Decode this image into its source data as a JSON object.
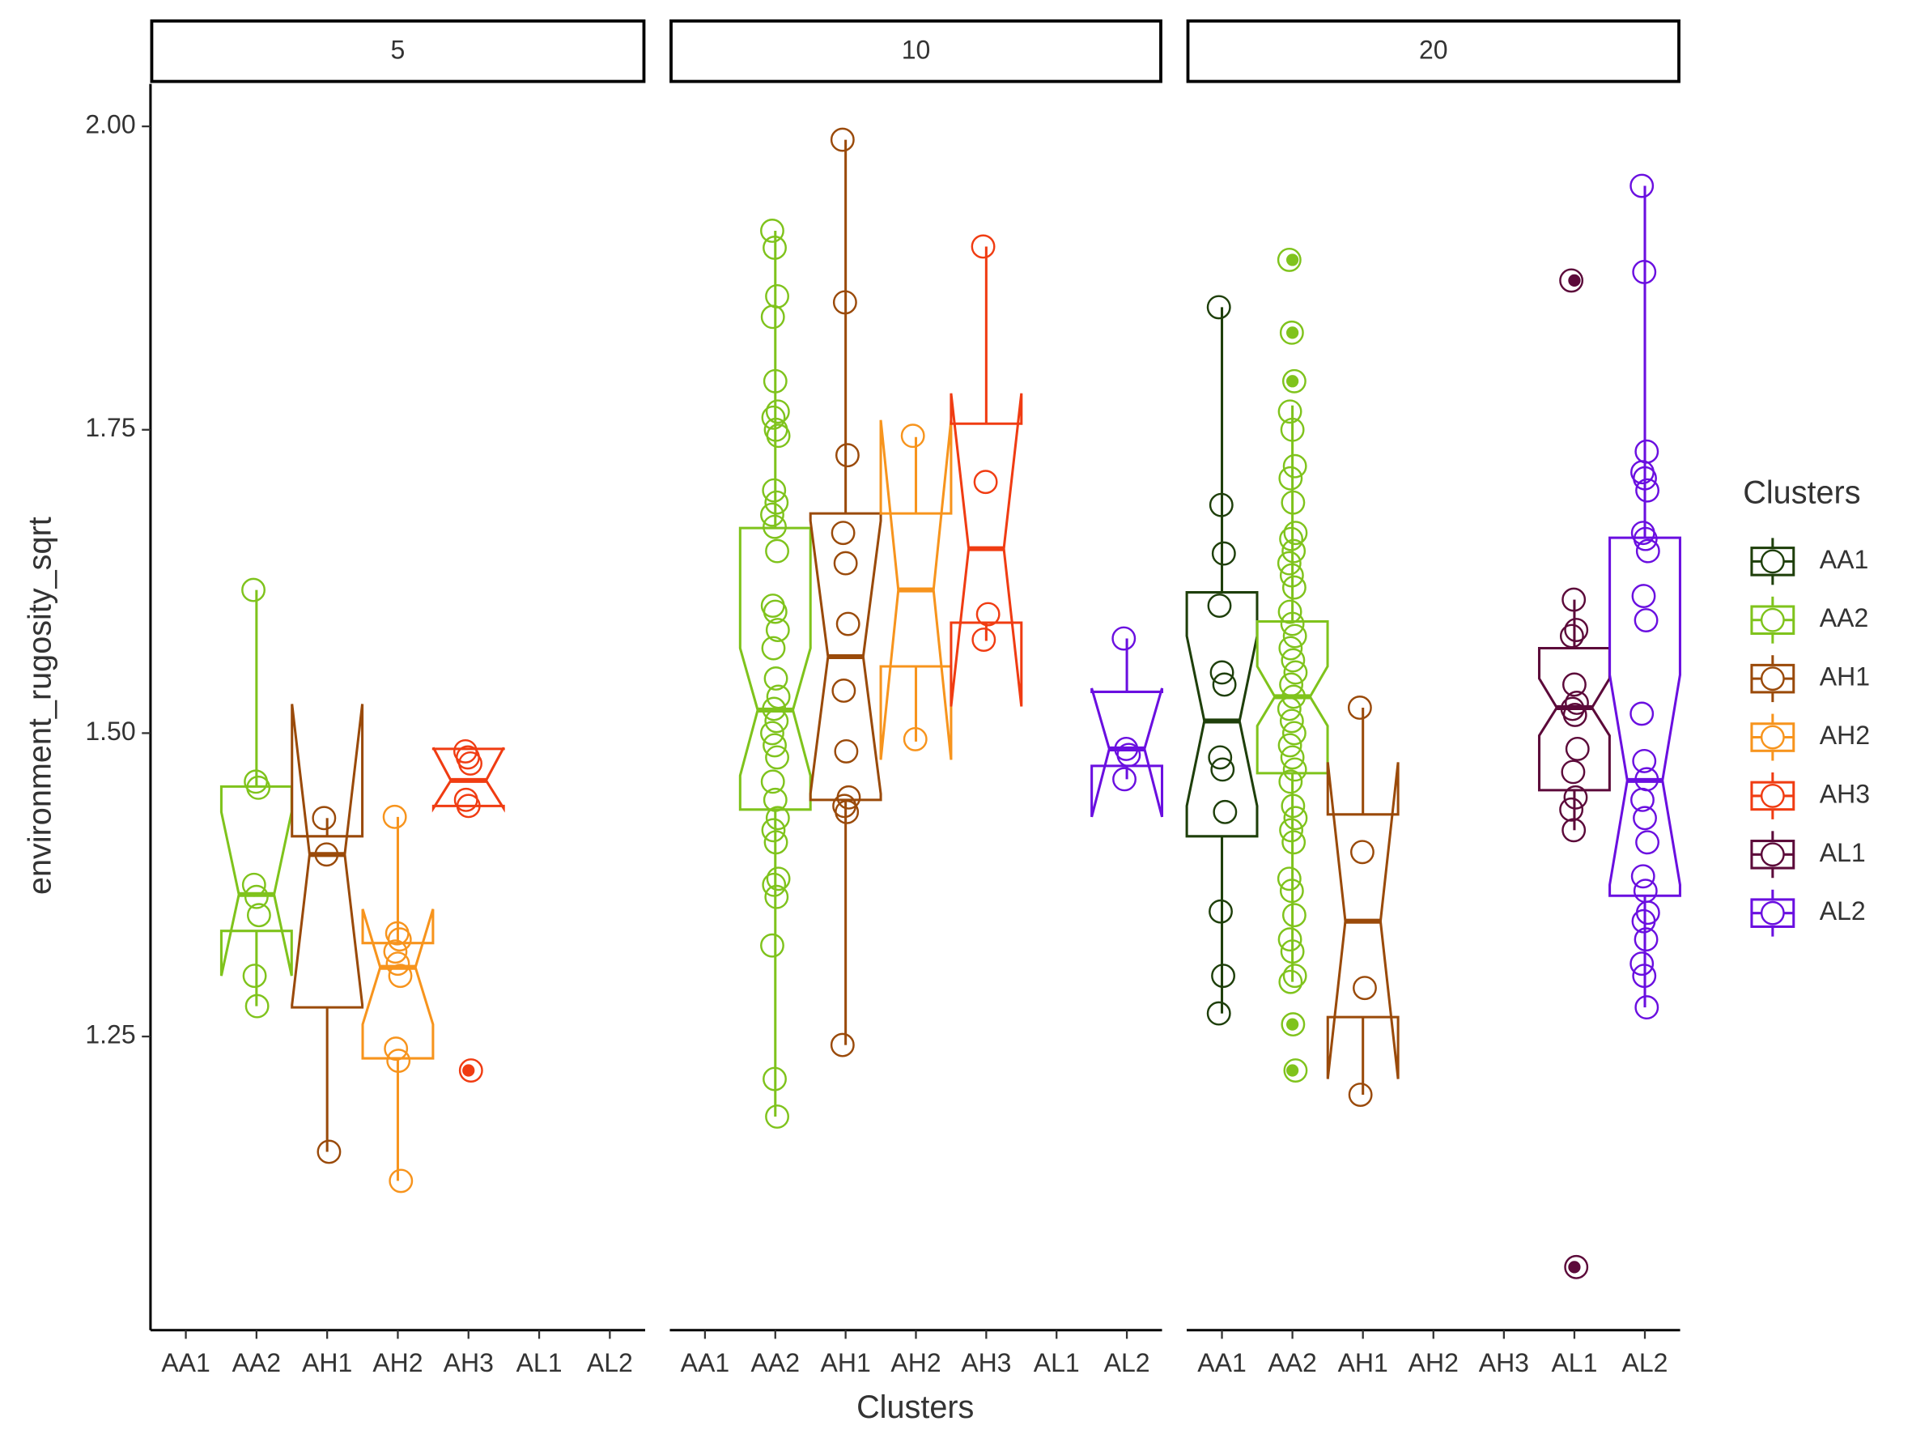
{
  "chart_data": {
    "type": "boxplot",
    "x_label": "Clusters",
    "y_label": "environment_rugosity_sqrt",
    "legend_title": "Clusters",
    "legend_position": "right",
    "categories": [
      "AA1",
      "AA2",
      "AH1",
      "AH2",
      "AH3",
      "AL1",
      "AL2"
    ],
    "series": [
      {
        "name": "AA1",
        "color": "#1e3f0a"
      },
      {
        "name": "AA2",
        "color": "#7fc31c"
      },
      {
        "name": "AH1",
        "color": "#9a4a0a"
      },
      {
        "name": "AH2",
        "color": "#f7941d"
      },
      {
        "name": "AH3",
        "color": "#f03c12"
      },
      {
        "name": "AL1",
        "color": "#5c0a3a"
      },
      {
        "name": "AL2",
        "color": "#6a0fe0"
      }
    ],
    "ylim": [
      1.008,
      2.035
    ],
    "yticks": [
      {
        "value": 1.25,
        "label": "1.25"
      },
      {
        "value": 1.5,
        "label": "1.50"
      },
      {
        "value": 1.75,
        "label": "1.75"
      },
      {
        "value": 2,
        "label": "2.00"
      }
    ],
    "facets": [
      {
        "title": "5",
        "values": [
          null,
          {
            "q1": 1.337,
            "median": 1.367,
            "q3": 1.456,
            "lower": 1.275,
            "upper": 1.618,
            "notch_low": 1.3,
            "notch_high": 1.435,
            "points": [
              1.618,
              1.46,
              1.455,
              1.375,
              1.365,
              1.35,
              1.3,
              1.275
            ],
            "outliers": []
          },
          {
            "q1": 1.274,
            "median": 1.4,
            "q3": 1.415,
            "lower": 1.155,
            "upper": 1.43,
            "notch_low": 1.276,
            "notch_high": 1.524,
            "points": [
              1.43,
              1.4,
              1.155
            ],
            "outliers": []
          },
          {
            "q1": 1.232,
            "median": 1.307,
            "q3": 1.327,
            "lower": 1.131,
            "upper": 1.431,
            "notch_low": 1.26,
            "notch_high": 1.355,
            "points": [
              1.431,
              1.335,
              1.33,
              1.32,
              1.31,
              1.3,
              1.24,
              1.23,
              1.131
            ],
            "outliers": []
          },
          {
            "q1": 1.44,
            "median": 1.461,
            "q3": 1.487,
            "lower": 1.44,
            "upper": 1.487,
            "notch_low": 1.438,
            "notch_high": 1.488,
            "points": [
              1.485,
              1.48,
              1.475,
              1.445,
              1.44,
              1.222
            ],
            "outliers": [
              1.222
            ]
          },
          null,
          null
        ]
      },
      {
        "title": "10",
        "values": [
          null,
          {
            "q1": 1.437,
            "median": 1.519,
            "q3": 1.669,
            "lower": 1.184,
            "upper": 1.914,
            "notch_low": 1.465,
            "notch_high": 1.57,
            "points": [
              1.914,
              1.9,
              1.86,
              1.843,
              1.79,
              1.765,
              1.76,
              1.75,
              1.745,
              1.7,
              1.69,
              1.68,
              1.67,
              1.65,
              1.605,
              1.6,
              1.585,
              1.57,
              1.545,
              1.53,
              1.52,
              1.51,
              1.5,
              1.49,
              1.48,
              1.46,
              1.445,
              1.43,
              1.42,
              1.41,
              1.38,
              1.375,
              1.365,
              1.325,
              1.215,
              1.184
            ],
            "outliers": []
          },
          {
            "q1": 1.445,
            "median": 1.563,
            "q3": 1.681,
            "lower": 1.243,
            "upper": 1.989,
            "notch_low": 1.45,
            "notch_high": 1.675,
            "points": [
              1.989,
              1.855,
              1.729,
              1.665,
              1.64,
              1.59,
              1.535,
              1.485,
              1.447,
              1.44,
              1.435,
              1.243
            ],
            "outliers": []
          },
          {
            "q1": 1.555,
            "median": 1.618,
            "q3": 1.681,
            "lower": 1.493,
            "upper": 1.744,
            "notch_low": 1.478,
            "notch_high": 1.758,
            "points": [
              1.745,
              1.495
            ],
            "outliers": []
          },
          {
            "q1": 1.591,
            "median": 1.652,
            "q3": 1.755,
            "lower": 1.576,
            "upper": 1.901,
            "notch_low": 1.522,
            "notch_high": 1.78,
            "points": [
              1.901,
              1.707,
              1.598,
              1.577
            ],
            "outliers": []
          },
          null,
          {
            "q1": 1.473,
            "median": 1.487,
            "q3": 1.534,
            "lower": 1.462,
            "upper": 1.578,
            "notch_low": 1.431,
            "notch_high": 1.537,
            "points": [
              1.578,
              1.487,
              1.482,
              1.462
            ],
            "outliers": []
          }
        ]
      },
      {
        "title": "20",
        "values": [
          {
            "q1": 1.415,
            "median": 1.51,
            "q3": 1.616,
            "lower": 1.269,
            "upper": 1.851,
            "notch_low": 1.44,
            "notch_high": 1.58,
            "points": [
              1.851,
              1.688,
              1.648,
              1.605,
              1.55,
              1.54,
              1.48,
              1.47,
              1.435,
              1.353,
              1.3,
              1.269
            ],
            "outliers": []
          },
          {
            "q1": 1.467,
            "median": 1.53,
            "q3": 1.592,
            "lower": 1.295,
            "upper": 1.77,
            "notch_low": 1.506,
            "notch_high": 1.555,
            "points": [
              1.89,
              1.83,
              1.79,
              1.765,
              1.75,
              1.72,
              1.71,
              1.69,
              1.665,
              1.66,
              1.65,
              1.64,
              1.63,
              1.62,
              1.6,
              1.59,
              1.58,
              1.57,
              1.56,
              1.55,
              1.54,
              1.53,
              1.52,
              1.51,
              1.5,
              1.49,
              1.48,
              1.47,
              1.46,
              1.44,
              1.43,
              1.42,
              1.41,
              1.38,
              1.37,
              1.35,
              1.33,
              1.32,
              1.3,
              1.295,
              1.26,
              1.222
            ],
            "outliers": [
              1.89,
              1.83,
              1.79,
              1.26,
              1.222
            ]
          },
          {
            "q1": 1.266,
            "median": 1.345,
            "q3": 1.433,
            "lower": 1.202,
            "upper": 1.521,
            "notch_low": 1.215,
            "notch_high": 1.476,
            "points": [
              1.521,
              1.402,
              1.29,
              1.202
            ],
            "outliers": []
          },
          null,
          null,
          {
            "q1": 1.453,
            "median": 1.521,
            "q3": 1.57,
            "lower": 1.42,
            "upper": 1.61,
            "notch_low": 1.498,
            "notch_high": 1.545,
            "points": [
              1.873,
              1.61,
              1.585,
              1.58,
              1.54,
              1.525,
              1.52,
              1.515,
              1.487,
              1.468,
              1.447,
              1.437,
              1.42,
              1.06
            ],
            "outliers": [
              1.873,
              1.06
            ]
          },
          {
            "q1": 1.366,
            "median": 1.461,
            "q3": 1.661,
            "lower": 1.274,
            "upper": 1.951,
            "notch_low": 1.375,
            "notch_high": 1.548,
            "points": [
              1.951,
              1.88,
              1.732,
              1.715,
              1.71,
              1.7,
              1.665,
              1.66,
              1.65,
              1.613,
              1.593,
              1.516,
              1.477,
              1.462,
              1.445,
              1.43,
              1.41,
              1.382,
              1.37,
              1.352,
              1.345,
              1.33,
              1.31,
              1.3,
              1.274
            ],
            "outliers": []
          }
        ]
      }
    ]
  }
}
